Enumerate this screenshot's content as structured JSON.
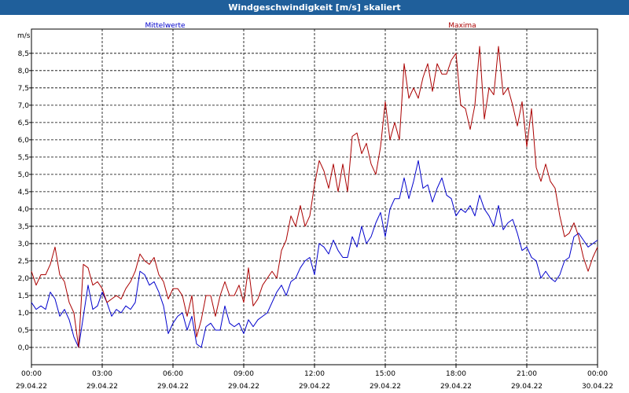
{
  "window": {
    "title": "Windgeschwindigkeit [m/s] skaliert"
  },
  "chart_data": {
    "type": "line",
    "title": "Windgeschwindigkeit [m/s] skaliert",
    "ylabel": "m/s",
    "xlabel": "",
    "ylim": [
      -0.5,
      9.2
    ],
    "yticks": [
      "0,0",
      "0,5",
      "1,0",
      "1,5",
      "2,0",
      "2,5",
      "3,0",
      "3,5",
      "4,0",
      "4,5",
      "5,0",
      "5,5",
      "6,0",
      "6,5",
      "7,0",
      "7,5",
      "8,0",
      "8,5"
    ],
    "xlim_hours": [
      0,
      24
    ],
    "xticks": [
      {
        "time": "00:00",
        "date": "29.04.22"
      },
      {
        "time": "03:00",
        "date": "29.04.22"
      },
      {
        "time": "06:00",
        "date": "29.04.22"
      },
      {
        "time": "09:00",
        "date": "29.04.22"
      },
      {
        "time": "12:00",
        "date": "29.04.22"
      },
      {
        "time": "15:00",
        "date": "29.04.22"
      },
      {
        "time": "18:00",
        "date": "29.04.22"
      },
      {
        "time": "21:00",
        "date": "29.04.22"
      },
      {
        "time": "00:00",
        "date": "30.04.22"
      }
    ],
    "grid": true,
    "legend": {
      "position": "top",
      "entries": [
        "Mittelwerte",
        "Maxima"
      ]
    },
    "series": [
      {
        "name": "Mittelwerte",
        "color": "#0000cc",
        "points": [
          [
            0,
            1.3
          ],
          [
            0.2,
            1.1
          ],
          [
            0.4,
            1.2
          ],
          [
            0.6,
            1.1
          ],
          [
            0.8,
            1.6
          ],
          [
            1.0,
            1.4
          ],
          [
            1.2,
            0.9
          ],
          [
            1.4,
            1.1
          ],
          [
            1.6,
            0.8
          ],
          [
            1.8,
            0.3
          ],
          [
            2.0,
            0.0
          ],
          [
            2.2,
            0.9
          ],
          [
            2.4,
            1.8
          ],
          [
            2.6,
            1.1
          ],
          [
            2.8,
            1.2
          ],
          [
            3.0,
            1.6
          ],
          [
            3.2,
            1.3
          ],
          [
            3.4,
            0.9
          ],
          [
            3.6,
            1.1
          ],
          [
            3.8,
            1.0
          ],
          [
            4.0,
            1.2
          ],
          [
            4.2,
            1.1
          ],
          [
            4.4,
            1.3
          ],
          [
            4.6,
            2.2
          ],
          [
            4.8,
            2.1
          ],
          [
            5.0,
            1.8
          ],
          [
            5.2,
            1.9
          ],
          [
            5.4,
            1.6
          ],
          [
            5.6,
            1.2
          ],
          [
            5.8,
            0.4
          ],
          [
            6.0,
            0.7
          ],
          [
            6.2,
            0.9
          ],
          [
            6.4,
            1.0
          ],
          [
            6.6,
            0.5
          ],
          [
            6.8,
            0.9
          ],
          [
            7.0,
            0.1
          ],
          [
            7.2,
            0.0
          ],
          [
            7.4,
            0.6
          ],
          [
            7.6,
            0.7
          ],
          [
            7.8,
            0.5
          ],
          [
            8.0,
            0.5
          ],
          [
            8.2,
            1.2
          ],
          [
            8.4,
            0.7
          ],
          [
            8.6,
            0.6
          ],
          [
            8.8,
            0.7
          ],
          [
            9.0,
            0.4
          ],
          [
            9.2,
            0.8
          ],
          [
            9.4,
            0.6
          ],
          [
            9.6,
            0.8
          ],
          [
            9.8,
            0.9
          ],
          [
            10.0,
            1.0
          ],
          [
            10.2,
            1.3
          ],
          [
            10.4,
            1.6
          ],
          [
            10.6,
            1.8
          ],
          [
            10.8,
            1.5
          ],
          [
            11.0,
            1.9
          ],
          [
            11.2,
            2.0
          ],
          [
            11.4,
            2.3
          ],
          [
            11.6,
            2.5
          ],
          [
            11.8,
            2.6
          ],
          [
            12.0,
            2.1
          ],
          [
            12.2,
            3.0
          ],
          [
            12.4,
            2.9
          ],
          [
            12.6,
            2.7
          ],
          [
            12.8,
            3.1
          ],
          [
            13.0,
            2.8
          ],
          [
            13.2,
            2.6
          ],
          [
            13.4,
            2.6
          ],
          [
            13.6,
            3.2
          ],
          [
            13.8,
            2.9
          ],
          [
            14.0,
            3.5
          ],
          [
            14.2,
            3.0
          ],
          [
            14.4,
            3.2
          ],
          [
            14.6,
            3.6
          ],
          [
            14.8,
            3.9
          ],
          [
            15.0,
            3.2
          ],
          [
            15.2,
            4.0
          ],
          [
            15.4,
            4.3
          ],
          [
            15.6,
            4.3
          ],
          [
            15.8,
            4.9
          ],
          [
            16.0,
            4.3
          ],
          [
            16.2,
            4.8
          ],
          [
            16.4,
            5.4
          ],
          [
            16.6,
            4.6
          ],
          [
            16.8,
            4.7
          ],
          [
            17.0,
            4.2
          ],
          [
            17.2,
            4.6
          ],
          [
            17.4,
            4.9
          ],
          [
            17.6,
            4.4
          ],
          [
            17.8,
            4.3
          ],
          [
            18.0,
            3.8
          ],
          [
            18.2,
            4.0
          ],
          [
            18.4,
            3.9
          ],
          [
            18.6,
            4.1
          ],
          [
            18.8,
            3.8
          ],
          [
            19.0,
            4.4
          ],
          [
            19.2,
            4.0
          ],
          [
            19.4,
            3.8
          ],
          [
            19.6,
            3.5
          ],
          [
            19.8,
            4.1
          ],
          [
            20.0,
            3.4
          ],
          [
            20.2,
            3.6
          ],
          [
            20.4,
            3.7
          ],
          [
            20.6,
            3.3
          ],
          [
            20.8,
            2.8
          ],
          [
            21.0,
            2.9
          ],
          [
            21.2,
            2.6
          ],
          [
            21.4,
            2.5
          ],
          [
            21.6,
            2.0
          ],
          [
            21.8,
            2.2
          ],
          [
            22.0,
            2.0
          ],
          [
            22.2,
            1.9
          ],
          [
            22.4,
            2.1
          ],
          [
            22.6,
            2.5
          ],
          [
            22.8,
            2.6
          ],
          [
            23.0,
            3.2
          ],
          [
            23.2,
            3.3
          ],
          [
            23.4,
            3.1
          ],
          [
            23.6,
            2.9
          ],
          [
            23.8,
            3.0
          ],
          [
            24.0,
            3.1
          ]
        ]
      },
      {
        "name": "Maxima",
        "color": "#aa0000",
        "points": [
          [
            0,
            2.2
          ],
          [
            0.2,
            1.8
          ],
          [
            0.4,
            2.1
          ],
          [
            0.6,
            2.1
          ],
          [
            0.8,
            2.4
          ],
          [
            1.0,
            2.9
          ],
          [
            1.2,
            2.1
          ],
          [
            1.4,
            1.9
          ],
          [
            1.6,
            1.3
          ],
          [
            1.8,
            1.0
          ],
          [
            2.0,
            0.0
          ],
          [
            2.2,
            2.4
          ],
          [
            2.4,
            2.3
          ],
          [
            2.6,
            1.8
          ],
          [
            2.8,
            1.9
          ],
          [
            3.0,
            1.7
          ],
          [
            3.2,
            1.3
          ],
          [
            3.4,
            1.4
          ],
          [
            3.6,
            1.5
          ],
          [
            3.8,
            1.4
          ],
          [
            4.0,
            1.7
          ],
          [
            4.2,
            1.9
          ],
          [
            4.4,
            2.2
          ],
          [
            4.6,
            2.7
          ],
          [
            4.8,
            2.5
          ],
          [
            5.0,
            2.4
          ],
          [
            5.2,
            2.6
          ],
          [
            5.4,
            2.1
          ],
          [
            5.6,
            1.9
          ],
          [
            5.8,
            1.4
          ],
          [
            6.0,
            1.7
          ],
          [
            6.2,
            1.7
          ],
          [
            6.4,
            1.5
          ],
          [
            6.6,
            0.9
          ],
          [
            6.8,
            1.5
          ],
          [
            7.0,
            0.3
          ],
          [
            7.2,
            0.8
          ],
          [
            7.4,
            1.5
          ],
          [
            7.6,
            1.5
          ],
          [
            7.8,
            0.9
          ],
          [
            8.0,
            1.5
          ],
          [
            8.2,
            1.9
          ],
          [
            8.4,
            1.5
          ],
          [
            8.6,
            1.5
          ],
          [
            8.8,
            1.8
          ],
          [
            9.0,
            1.3
          ],
          [
            9.2,
            2.3
          ],
          [
            9.4,
            1.2
          ],
          [
            9.6,
            1.4
          ],
          [
            9.8,
            1.8
          ],
          [
            10.0,
            2.0
          ],
          [
            10.2,
            2.2
          ],
          [
            10.4,
            2.0
          ],
          [
            10.6,
            2.8
          ],
          [
            10.8,
            3.1
          ],
          [
            11.0,
            3.8
          ],
          [
            11.2,
            3.5
          ],
          [
            11.4,
            4.1
          ],
          [
            11.6,
            3.5
          ],
          [
            11.8,
            3.8
          ],
          [
            12.0,
            4.7
          ],
          [
            12.2,
            5.4
          ],
          [
            12.4,
            5.1
          ],
          [
            12.6,
            4.6
          ],
          [
            12.8,
            5.3
          ],
          [
            13.0,
            4.5
          ],
          [
            13.2,
            5.3
          ],
          [
            13.4,
            4.5
          ],
          [
            13.6,
            6.1
          ],
          [
            13.8,
            6.2
          ],
          [
            14.0,
            5.6
          ],
          [
            14.2,
            5.9
          ],
          [
            14.4,
            5.3
          ],
          [
            14.6,
            5.0
          ],
          [
            14.8,
            5.8
          ],
          [
            15.0,
            7.1
          ],
          [
            15.2,
            6.0
          ],
          [
            15.4,
            6.5
          ],
          [
            15.6,
            6.0
          ],
          [
            15.8,
            8.2
          ],
          [
            16.0,
            7.2
          ],
          [
            16.2,
            7.5
          ],
          [
            16.4,
            7.2
          ],
          [
            16.6,
            7.8
          ],
          [
            16.8,
            8.2
          ],
          [
            17.0,
            7.4
          ],
          [
            17.2,
            8.2
          ],
          [
            17.4,
            7.9
          ],
          [
            17.6,
            7.9
          ],
          [
            17.8,
            8.3
          ],
          [
            18.0,
            8.5
          ],
          [
            18.2,
            7.0
          ],
          [
            18.4,
            6.9
          ],
          [
            18.6,
            6.3
          ],
          [
            18.8,
            7.0
          ],
          [
            19.0,
            8.7
          ],
          [
            19.2,
            6.6
          ],
          [
            19.4,
            7.5
          ],
          [
            19.6,
            7.3
          ],
          [
            19.8,
            8.7
          ],
          [
            20.0,
            7.3
          ],
          [
            20.2,
            7.5
          ],
          [
            20.4,
            7.0
          ],
          [
            20.6,
            6.4
          ],
          [
            20.8,
            7.1
          ],
          [
            21.0,
            5.8
          ],
          [
            21.2,
            6.9
          ],
          [
            21.4,
            5.2
          ],
          [
            21.6,
            4.8
          ],
          [
            21.8,
            5.3
          ],
          [
            22.0,
            4.8
          ],
          [
            22.2,
            4.6
          ],
          [
            22.4,
            3.8
          ],
          [
            22.6,
            3.2
          ],
          [
            22.8,
            3.3
          ],
          [
            23.0,
            3.6
          ],
          [
            23.2,
            3.2
          ],
          [
            23.4,
            2.6
          ],
          [
            23.6,
            2.2
          ],
          [
            23.8,
            2.6
          ],
          [
            24.0,
            2.9
          ]
        ]
      }
    ]
  }
}
